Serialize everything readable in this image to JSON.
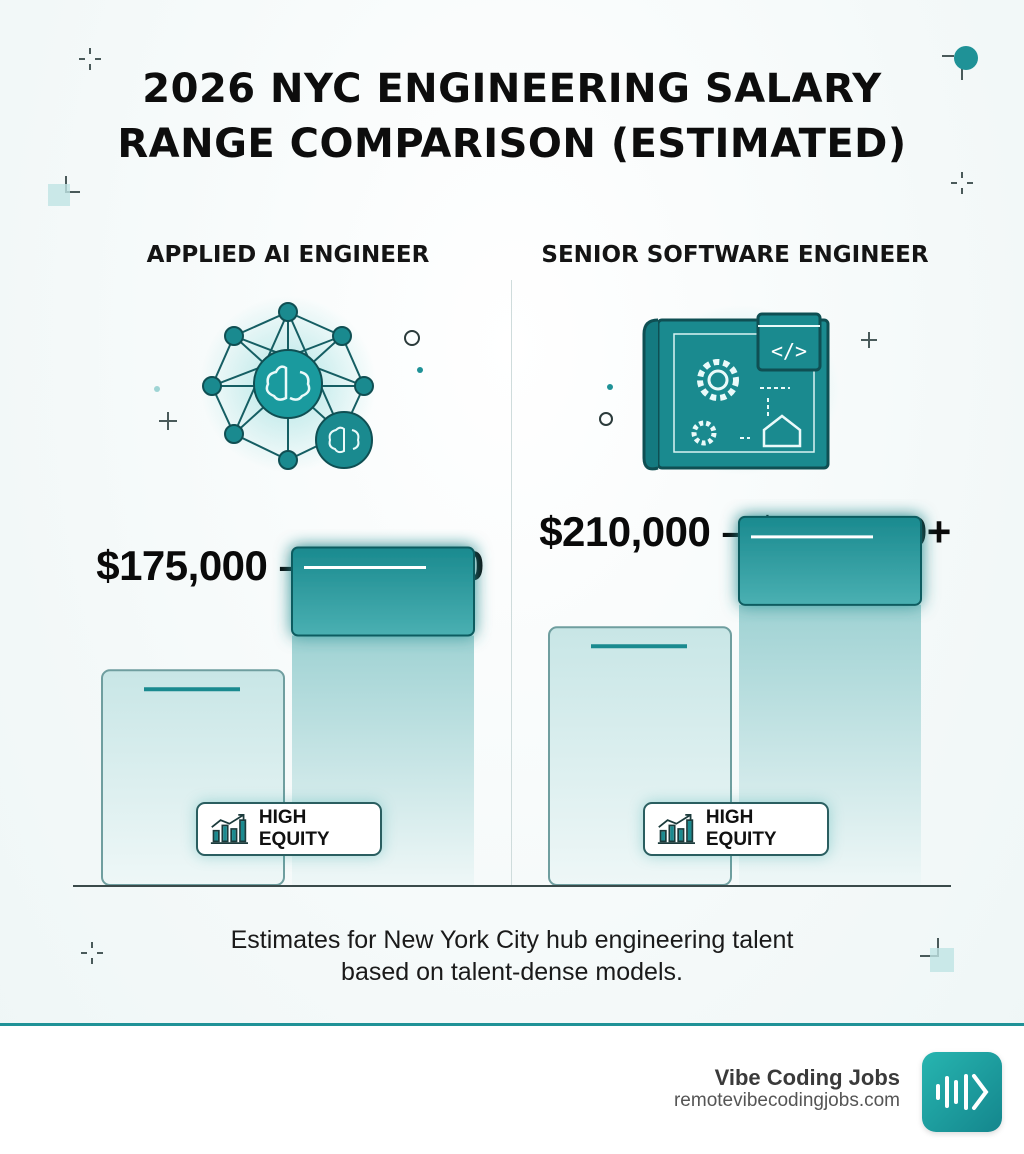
{
  "title_lines": [
    "2026 NYC ENGINEERING SALARY",
    "RANGE COMPARISON (ESTIMATED)"
  ],
  "columns": [
    {
      "title": "APPLIED AI ENGINEER",
      "range_text": "$175,000 – $275,000",
      "icon": "ai-brain-network-icon",
      "badge": {
        "icon": "chart-growth-icon",
        "label": "HIGH EQUITY"
      }
    },
    {
      "title": "SENIOR SOFTWARE ENGINEER",
      "range_text": "$210,000 – $300,000+",
      "icon": "software-blueprint-icon",
      "badge": {
        "icon": "chart-growth-icon",
        "label": "HIGH EQUITY"
      }
    }
  ],
  "chart_data": {
    "type": "bar",
    "title": "2026 NYC ENGINEERING SALARY RANGE COMPARISON (ESTIMATED)",
    "groups": [
      {
        "name": "APPLIED AI ENGINEER",
        "low": 175000,
        "high": 275000
      },
      {
        "name": "SENIOR SOFTWARE ENGINEER",
        "low": 210000,
        "high": 300000
      }
    ],
    "ylim": [
      0,
      330000
    ],
    "grid": false,
    "colors": {
      "accent": "#1a8a8f",
      "light": "#cfe7e7",
      "dark": "#147a80"
    }
  },
  "footnote_lines": [
    "Estimates for New York City hub engineering talent",
    "based on talent-dense models."
  ],
  "brand": {
    "name": "Vibe Coding Jobs",
    "url": "remotevibecodingjobs.com",
    "logo_icon": "vibe-coding-logo-icon"
  }
}
